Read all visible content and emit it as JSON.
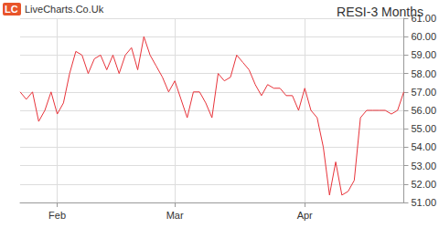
{
  "chart_data": {
    "type": "line",
    "title": "RESI-3 Months",
    "annotations": [
      "LC",
      "LiveCharts.Co.Uk"
    ],
    "categories": [
      null,
      null,
      null,
      null,
      null,
      null,
      "Feb",
      null,
      null,
      null,
      null,
      null,
      null,
      null,
      null,
      null,
      null,
      null,
      null,
      null,
      null,
      null,
      null,
      null,
      null,
      "Mar",
      null,
      null,
      null,
      null,
      null,
      null,
      null,
      null,
      null,
      null,
      null,
      null,
      null,
      null,
      null,
      null,
      null,
      null,
      null,
      null,
      "Apr",
      null,
      null,
      null,
      null,
      null,
      null,
      null,
      null,
      null,
      null,
      null,
      null,
      null,
      null,
      null,
      null
    ],
    "values": [
      57.0,
      56.6,
      57.0,
      55.4,
      56.0,
      57.0,
      55.8,
      56.4,
      58.0,
      59.2,
      59.0,
      58.0,
      58.8,
      59.0,
      58.2,
      59.0,
      58.0,
      59.0,
      59.4,
      58.2,
      60.0,
      59.0,
      58.4,
      57.8,
      57.0,
      57.6,
      56.6,
      55.6,
      57.0,
      57.0,
      56.4,
      55.6,
      58.0,
      57.6,
      57.8,
      59.0,
      58.6,
      58.2,
      57.4,
      56.8,
      57.4,
      57.2,
      57.2,
      56.8,
      56.8,
      56.0,
      57.2,
      56.0,
      55.6,
      54.0,
      51.4,
      53.2,
      51.4,
      51.6,
      52.2,
      55.6,
      56.0,
      56.0,
      56.0,
      56.0,
      55.8,
      56.0,
      57.0
    ],
    "color": "#e8333a",
    "ylim": [
      51,
      61
    ],
    "yticks": [
      {
        "value": 51,
        "label": "51.00"
      },
      {
        "value": 52,
        "label": "52.00"
      },
      {
        "value": 53,
        "label": "53.00"
      },
      {
        "value": 54,
        "label": "54.00"
      },
      {
        "value": 55,
        "label": "55.00"
      },
      {
        "value": 56,
        "label": "56.00"
      },
      {
        "value": 57,
        "label": "57.00"
      },
      {
        "value": 58,
        "label": "58.00"
      },
      {
        "value": 59,
        "label": "59.00"
      },
      {
        "value": 60,
        "label": "60.00"
      },
      {
        "value": 61,
        "label": "61.00"
      }
    ],
    "grid": true
  }
}
